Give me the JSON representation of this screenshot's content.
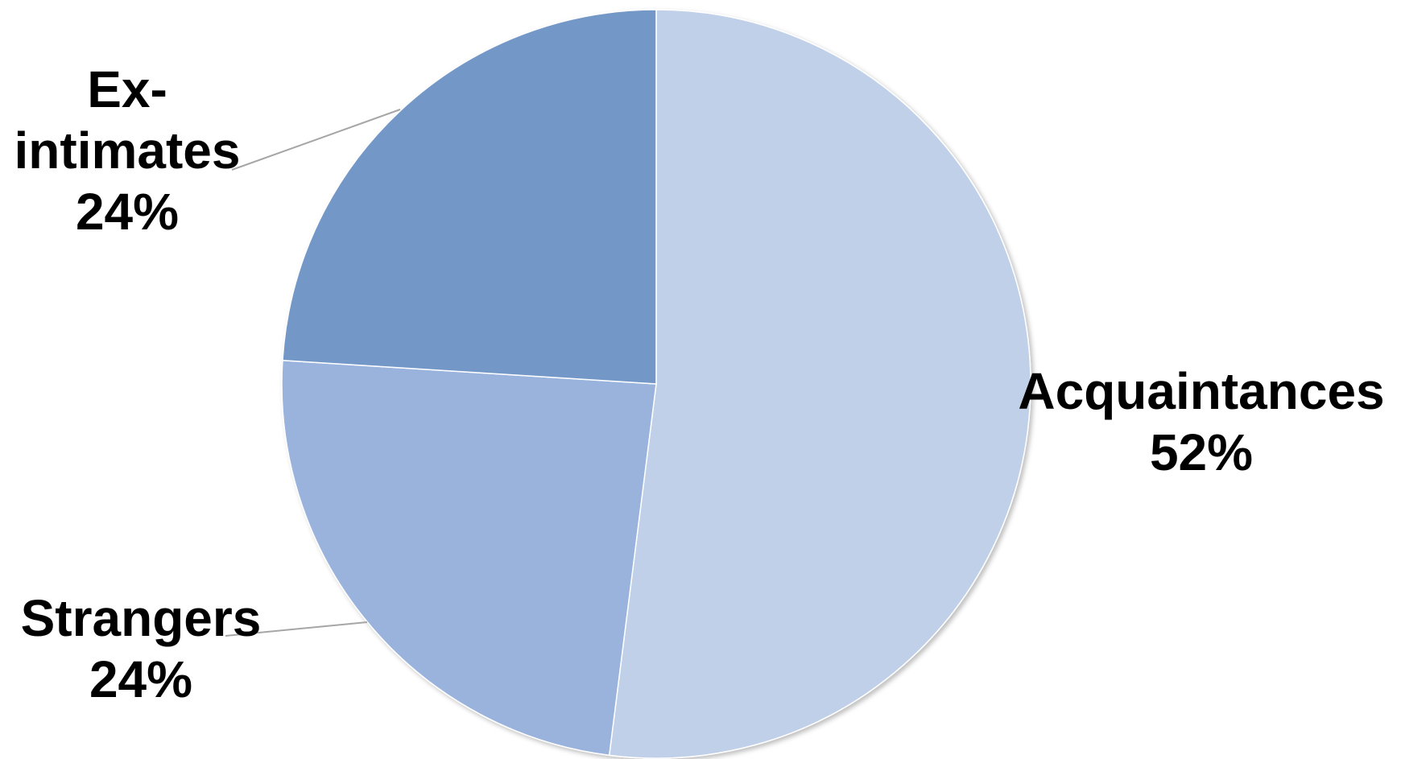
{
  "chart_data": {
    "type": "pie",
    "slices": [
      {
        "name": "Acquaintances",
        "value": 52,
        "label_lines": [
          "Acquaintances"
        ],
        "percent_label": "52%",
        "color": "#c0d0e9"
      },
      {
        "name": "Strangers",
        "value": 24,
        "label_lines": [
          "Strangers"
        ],
        "percent_label": "24%",
        "color": "#99b3dc"
      },
      {
        "name": "Ex-intimates",
        "value": 24,
        "label_lines": [
          "Ex-",
          "intimates"
        ],
        "percent_label": "24%",
        "color": "#7397c7"
      }
    ],
    "start_angle_deg": 0,
    "direction": "clockwise",
    "legend": "none"
  }
}
